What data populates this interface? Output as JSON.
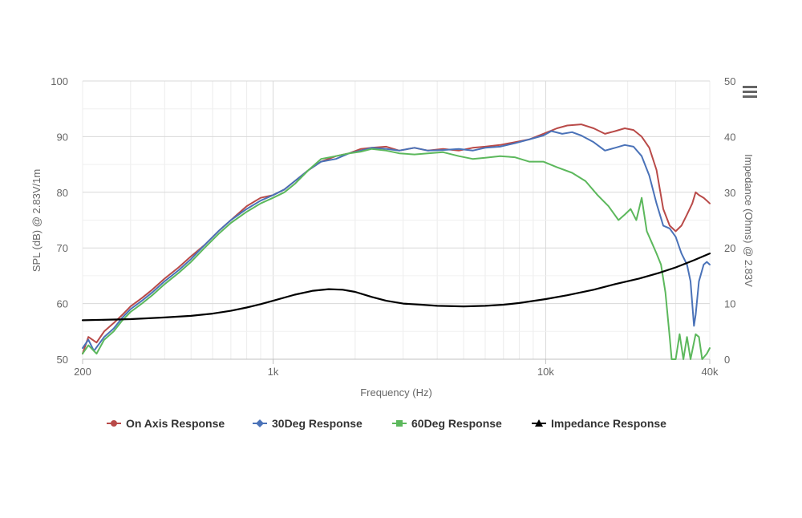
{
  "chart_data": {
    "type": "line",
    "xlabel": "Frequency (Hz)",
    "ylabel_left": "SPL (dB) @ 2.83V/1m",
    "ylabel_right": "Impedance (Ohms) @ 2.83V",
    "x_scale": "log",
    "xlim": [
      200,
      40000
    ],
    "ylim_left": [
      50,
      100
    ],
    "ylim_right": [
      0,
      50
    ],
    "x_ticks": [
      {
        "value": 200,
        "label": "200"
      },
      {
        "value": 1000,
        "label": "1k"
      },
      {
        "value": 10000,
        "label": "10k"
      },
      {
        "value": 40000,
        "label": "40k"
      }
    ],
    "y_ticks_left": [
      "50",
      "60",
      "70",
      "80",
      "90",
      "100"
    ],
    "y_ticks_right": [
      "0",
      "10",
      "20",
      "30",
      "40",
      "50"
    ],
    "grid": true,
    "legend_position": "bottom",
    "series": [
      {
        "name": "On Axis Response",
        "axis": "left",
        "color": "#b94a48",
        "marker": "circle",
        "points": [
          [
            200,
            51
          ],
          [
            210,
            54
          ],
          [
            225,
            53
          ],
          [
            240,
            55
          ],
          [
            260,
            56.5
          ],
          [
            280,
            58
          ],
          [
            300,
            59.5
          ],
          [
            330,
            61
          ],
          [
            360,
            62.5
          ],
          [
            400,
            64.5
          ],
          [
            450,
            66.5
          ],
          [
            500,
            68.5
          ],
          [
            560,
            70.5
          ],
          [
            630,
            73
          ],
          [
            700,
            75
          ],
          [
            800,
            77.5
          ],
          [
            900,
            79
          ],
          [
            1000,
            79.5
          ],
          [
            1100,
            80.5
          ],
          [
            1200,
            82
          ],
          [
            1350,
            84
          ],
          [
            1500,
            85.5
          ],
          [
            1700,
            86.5
          ],
          [
            1900,
            87
          ],
          [
            2100,
            87.8
          ],
          [
            2300,
            88
          ],
          [
            2600,
            88.2
          ],
          [
            2900,
            87.5
          ],
          [
            3300,
            88
          ],
          [
            3700,
            87.5
          ],
          [
            4200,
            87.8
          ],
          [
            4800,
            87.5
          ],
          [
            5400,
            88
          ],
          [
            6000,
            88.2
          ],
          [
            6800,
            88.5
          ],
          [
            7700,
            89
          ],
          [
            8700,
            89.5
          ],
          [
            9800,
            90.5
          ],
          [
            11000,
            91.5
          ],
          [
            12000,
            92
          ],
          [
            13500,
            92.2
          ],
          [
            15000,
            91.5
          ],
          [
            16500,
            90.5
          ],
          [
            18000,
            91
          ],
          [
            19500,
            91.5
          ],
          [
            21000,
            91.2
          ],
          [
            22500,
            90
          ],
          [
            24000,
            88
          ],
          [
            25500,
            84
          ],
          [
            27000,
            77
          ],
          [
            28500,
            74
          ],
          [
            30000,
            73
          ],
          [
            31500,
            74
          ],
          [
            33000,
            76
          ],
          [
            34500,
            78
          ],
          [
            35500,
            80
          ],
          [
            36500,
            79.5
          ],
          [
            38000,
            79
          ],
          [
            39000,
            78.5
          ],
          [
            40000,
            78
          ]
        ]
      },
      {
        "name": "30Deg Response",
        "axis": "left",
        "color": "#4a72b8",
        "marker": "diamond",
        "points": [
          [
            200,
            52
          ],
          [
            210,
            53.5
          ],
          [
            220,
            51.5
          ],
          [
            240,
            54
          ],
          [
            260,
            55.5
          ],
          [
            280,
            57.5
          ],
          [
            300,
            59
          ],
          [
            330,
            60.5
          ],
          [
            360,
            62
          ],
          [
            400,
            64
          ],
          [
            450,
            66
          ],
          [
            500,
            68
          ],
          [
            560,
            70.5
          ],
          [
            630,
            73
          ],
          [
            700,
            75
          ],
          [
            800,
            77
          ],
          [
            900,
            78.5
          ],
          [
            1000,
            79.5
          ],
          [
            1100,
            80.5
          ],
          [
            1200,
            82
          ],
          [
            1350,
            84
          ],
          [
            1500,
            85.5
          ],
          [
            1700,
            86
          ],
          [
            1900,
            87
          ],
          [
            2100,
            87.5
          ],
          [
            2300,
            88
          ],
          [
            2600,
            87.8
          ],
          [
            2900,
            87.5
          ],
          [
            3300,
            88
          ],
          [
            3700,
            87.5
          ],
          [
            4200,
            87.6
          ],
          [
            4800,
            87.8
          ],
          [
            5400,
            87.5
          ],
          [
            6000,
            88
          ],
          [
            6800,
            88.2
          ],
          [
            7700,
            88.8
          ],
          [
            8700,
            89.5
          ],
          [
            9800,
            90.2
          ],
          [
            10500,
            91
          ],
          [
            11500,
            90.5
          ],
          [
            12500,
            90.8
          ],
          [
            13500,
            90.2
          ],
          [
            15000,
            89
          ],
          [
            16500,
            87.5
          ],
          [
            18000,
            88
          ],
          [
            19500,
            88.5
          ],
          [
            21000,
            88.2
          ],
          [
            22500,
            86.5
          ],
          [
            24000,
            83
          ],
          [
            25500,
            78
          ],
          [
            27000,
            74
          ],
          [
            28500,
            73.5
          ],
          [
            30000,
            72
          ],
          [
            31500,
            69
          ],
          [
            33000,
            67
          ],
          [
            34000,
            64
          ],
          [
            35000,
            56
          ],
          [
            35500,
            58
          ],
          [
            36500,
            64
          ],
          [
            38000,
            67
          ],
          [
            39000,
            67.5
          ],
          [
            40000,
            67
          ]
        ]
      },
      {
        "name": "60Deg Response",
        "axis": "left",
        "color": "#5cb85c",
        "marker": "square",
        "points": [
          [
            200,
            51
          ],
          [
            210,
            52.5
          ],
          [
            225,
            51
          ],
          [
            240,
            53.5
          ],
          [
            260,
            55
          ],
          [
            280,
            57
          ],
          [
            300,
            58.5
          ],
          [
            330,
            60
          ],
          [
            360,
            61.5
          ],
          [
            400,
            63.5
          ],
          [
            450,
            65.5
          ],
          [
            500,
            67.5
          ],
          [
            560,
            70
          ],
          [
            630,
            72.5
          ],
          [
            700,
            74.5
          ],
          [
            800,
            76.5
          ],
          [
            900,
            78
          ],
          [
            1000,
            79
          ],
          [
            1100,
            80
          ],
          [
            1200,
            81.5
          ],
          [
            1350,
            84
          ],
          [
            1500,
            86
          ],
          [
            1700,
            86.5
          ],
          [
            1900,
            87
          ],
          [
            2100,
            87.3
          ],
          [
            2300,
            87.8
          ],
          [
            2600,
            87.5
          ],
          [
            2900,
            87
          ],
          [
            3300,
            86.8
          ],
          [
            3700,
            87
          ],
          [
            4200,
            87.2
          ],
          [
            4800,
            86.5
          ],
          [
            5400,
            86
          ],
          [
            6000,
            86.2
          ],
          [
            6800,
            86.5
          ],
          [
            7700,
            86.3
          ],
          [
            8700,
            85.5
          ],
          [
            9800,
            85.5
          ],
          [
            11000,
            84.5
          ],
          [
            12500,
            83.5
          ],
          [
            14000,
            82
          ],
          [
            15500,
            79.5
          ],
          [
            17000,
            77.5
          ],
          [
            18500,
            75
          ],
          [
            19500,
            76
          ],
          [
            20500,
            77
          ],
          [
            21500,
            75
          ],
          [
            22000,
            77
          ],
          [
            22500,
            79
          ],
          [
            23000,
            76
          ],
          [
            23500,
            73
          ],
          [
            24500,
            71
          ],
          [
            25500,
            69
          ],
          [
            26500,
            67
          ],
          [
            27500,
            62
          ],
          [
            28500,
            54
          ],
          [
            29000,
            50
          ],
          [
            30000,
            50
          ],
          [
            31000,
            54.5
          ],
          [
            32000,
            50
          ],
          [
            33000,
            54
          ],
          [
            34000,
            50
          ],
          [
            35500,
            54.5
          ],
          [
            36500,
            54
          ],
          [
            37500,
            50
          ],
          [
            39000,
            51
          ],
          [
            40000,
            52
          ]
        ]
      },
      {
        "name": "Impedance Response",
        "axis": "right",
        "color": "#000000",
        "marker": "triangle",
        "points": [
          [
            200,
            7
          ],
          [
            300,
            7.2
          ],
          [
            400,
            7.5
          ],
          [
            500,
            7.8
          ],
          [
            600,
            8.2
          ],
          [
            700,
            8.7
          ],
          [
            800,
            9.3
          ],
          [
            900,
            9.9
          ],
          [
            1000,
            10.5
          ],
          [
            1200,
            11.6
          ],
          [
            1400,
            12.3
          ],
          [
            1600,
            12.6
          ],
          [
            1800,
            12.5
          ],
          [
            2000,
            12.1
          ],
          [
            2300,
            11.2
          ],
          [
            2600,
            10.5
          ],
          [
            3000,
            10
          ],
          [
            3500,
            9.8
          ],
          [
            4000,
            9.6
          ],
          [
            5000,
            9.5
          ],
          [
            6000,
            9.6
          ],
          [
            7000,
            9.8
          ],
          [
            8000,
            10.1
          ],
          [
            10000,
            10.8
          ],
          [
            12000,
            11.5
          ],
          [
            15000,
            12.5
          ],
          [
            18000,
            13.5
          ],
          [
            22000,
            14.5
          ],
          [
            26000,
            15.5
          ],
          [
            30000,
            16.5
          ],
          [
            35000,
            17.8
          ],
          [
            40000,
            19
          ]
        ]
      }
    ]
  }
}
